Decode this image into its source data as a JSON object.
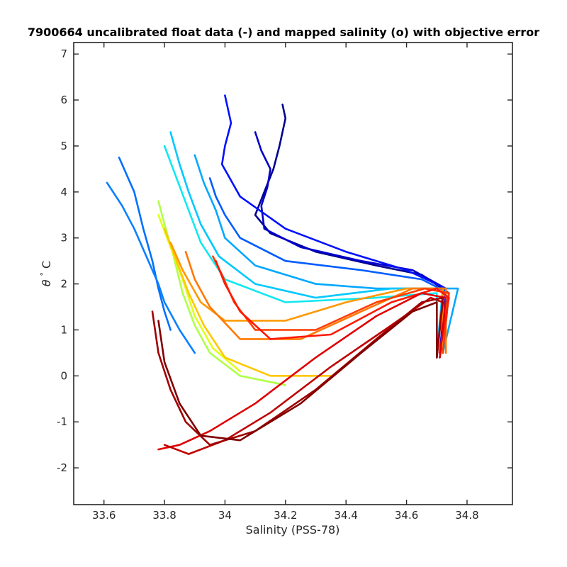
{
  "chart_data": {
    "type": "line",
    "title": "7900664 uncalibrated float data (-) and mapped salinity (o) with objective error",
    "xlabel": "Salinity (PSS-78)",
    "ylabel_symbol": "θ",
    "ylabel_degree": "°",
    "ylabel_unit": "C",
    "xlim": [
      33.5,
      34.95
    ],
    "ylim": [
      -2.8,
      7.25
    ],
    "grid": false,
    "legend": "none",
    "colormap": "jet",
    "x_ticks": [
      33.6,
      33.8,
      34.0,
      34.2,
      34.4,
      34.6,
      34.8
    ],
    "x_tick_labels": [
      "33.6",
      "33.8",
      "34",
      "34.2",
      "34.4",
      "34.6",
      "34.8"
    ],
    "y_ticks": [
      -2,
      -1,
      0,
      1,
      2,
      3,
      4,
      5,
      6,
      7
    ],
    "y_tick_labels": [
      "-2",
      "-1",
      "0",
      "1",
      "2",
      "3",
      "4",
      "5",
      "6",
      "7"
    ],
    "series": [
      {
        "color": "#00008f",
        "x": [
          34.19,
          34.2,
          34.18,
          34.16,
          34.13,
          34.1,
          34.15,
          34.3,
          34.5,
          34.65,
          34.74,
          34.71
        ],
        "y": [
          5.9,
          5.6,
          5.0,
          4.5,
          4.0,
          3.5,
          3.1,
          2.7,
          2.4,
          2.2,
          1.8,
          0.4
        ]
      },
      {
        "color": "#0000cc",
        "x": [
          34.1,
          34.12,
          34.15,
          34.14,
          34.12,
          34.13,
          34.25,
          34.45,
          34.62,
          34.73,
          34.72
        ],
        "y": [
          5.3,
          4.9,
          4.5,
          4.1,
          3.7,
          3.2,
          2.8,
          2.5,
          2.3,
          1.9,
          0.5
        ]
      },
      {
        "color": "#0010ff",
        "x": [
          34.0,
          34.02,
          34.0,
          33.99,
          34.05,
          34.2,
          34.4,
          34.6,
          34.73,
          34.71
        ],
        "y": [
          6.1,
          5.5,
          5.0,
          4.6,
          3.9,
          3.2,
          2.7,
          2.3,
          1.9,
          0.5
        ]
      },
      {
        "color": "#005cff",
        "x": [
          33.95,
          33.97,
          34.0,
          34.05,
          34.2,
          34.45,
          34.65,
          34.74,
          34.72
        ],
        "y": [
          4.3,
          3.9,
          3.5,
          3.0,
          2.5,
          2.3,
          2.1,
          1.8,
          0.5
        ]
      },
      {
        "color": "#0070ff",
        "x": [
          33.65,
          33.7,
          33.73,
          33.76,
          33.78,
          33.8,
          33.82
        ],
        "y": [
          4.75,
          4.0,
          3.2,
          2.5,
          1.9,
          1.4,
          1.0
        ]
      },
      {
        "color": "#0a80ff",
        "x": [
          33.61,
          33.66,
          33.7,
          33.74,
          33.78,
          33.8,
          33.85,
          33.9
        ],
        "y": [
          4.2,
          3.7,
          3.2,
          2.6,
          2.0,
          1.6,
          1.0,
          0.5
        ]
      },
      {
        "color": "#00a8ff",
        "x": [
          33.9,
          33.93,
          33.97,
          34.0,
          34.1,
          34.3,
          34.5,
          34.68,
          34.77,
          34.72
        ],
        "y": [
          4.8,
          4.2,
          3.6,
          3.0,
          2.4,
          2.0,
          1.9,
          1.9,
          1.9,
          0.5
        ]
      },
      {
        "color": "#00c8ff",
        "x": [
          33.82,
          33.85,
          33.88,
          33.92,
          33.98,
          34.1,
          34.3,
          34.55,
          34.72,
          34.7
        ],
        "y": [
          5.3,
          4.6,
          4.0,
          3.3,
          2.6,
          2.0,
          1.7,
          1.9,
          1.9,
          0.5
        ]
      },
      {
        "color": "#10e8f0",
        "x": [
          33.8,
          33.84,
          33.88,
          33.92,
          34.0,
          34.2,
          34.5,
          34.7,
          34.7
        ],
        "y": [
          5.0,
          4.3,
          3.6,
          2.9,
          2.1,
          1.6,
          1.7,
          1.8,
          0.4
        ]
      },
      {
        "color": "#b0ff48",
        "x": [
          33.78,
          33.8,
          33.83,
          33.86,
          33.9,
          33.95,
          34.05,
          34.2
        ],
        "y": [
          3.8,
          3.3,
          2.6,
          1.8,
          1.1,
          0.5,
          0.0,
          -0.2
        ]
      },
      {
        "color": "#e0ff18",
        "x": [
          33.78,
          33.82,
          33.86,
          33.9,
          33.96,
          34.05
        ],
        "y": [
          3.5,
          2.8,
          2.1,
          1.3,
          0.6,
          0.1
        ]
      },
      {
        "color": "#ffc800",
        "x": [
          33.8,
          33.84,
          33.88,
          33.93,
          34.0,
          34.15,
          34.35
        ],
        "y": [
          3.2,
          2.5,
          1.8,
          1.1,
          0.4,
          0.0,
          0.0
        ]
      },
      {
        "color": "#ff9800",
        "x": [
          33.82,
          33.86,
          33.92,
          34.0,
          34.2,
          34.4,
          34.6,
          34.72,
          34.72
        ],
        "y": [
          2.9,
          2.3,
          1.6,
          1.2,
          1.2,
          1.6,
          1.9,
          1.9,
          0.5
        ]
      },
      {
        "color": "#ff7800",
        "x": [
          33.87,
          33.9,
          33.95,
          34.05,
          34.25,
          34.45,
          34.62,
          34.73,
          34.73
        ],
        "y": [
          2.7,
          2.1,
          1.5,
          0.8,
          0.8,
          1.4,
          1.9,
          1.9,
          0.5
        ]
      },
      {
        "color": "#ff3c00",
        "x": [
          33.96,
          33.99,
          34.03,
          34.1,
          34.3,
          34.5,
          34.66,
          34.74,
          34.72
        ],
        "y": [
          2.6,
          2.2,
          1.6,
          1.0,
          1.0,
          1.6,
          1.9,
          1.8,
          0.5
        ]
      },
      {
        "color": "#ff1800",
        "x": [
          33.97,
          34.0,
          34.05,
          34.15,
          34.35,
          34.55,
          34.7,
          34.74,
          34.71
        ],
        "y": [
          2.5,
          2.0,
          1.4,
          0.8,
          0.9,
          1.6,
          1.9,
          1.7,
          0.5
        ]
      },
      {
        "color": "#e00000",
        "x": [
          33.78,
          33.85,
          33.95,
          34.1,
          34.3,
          34.5,
          34.65,
          34.73,
          34.71
        ],
        "y": [
          -1.6,
          -1.5,
          -1.2,
          -0.6,
          0.4,
          1.3,
          1.8,
          1.7,
          0.4
        ]
      },
      {
        "color": "#c00000",
        "x": [
          33.8,
          33.88,
          34.0,
          34.15,
          34.35,
          34.55,
          34.68,
          34.72,
          34.7
        ],
        "y": [
          -1.5,
          -1.7,
          -1.4,
          -0.8,
          0.2,
          1.1,
          1.7,
          1.6,
          0.4
        ]
      },
      {
        "color": "#a00000",
        "x": [
          33.76,
          33.78,
          33.82,
          33.87,
          33.95,
          34.1,
          34.3,
          34.5,
          34.65,
          34.72,
          34.7
        ],
        "y": [
          1.4,
          0.5,
          -0.3,
          -1.0,
          -1.5,
          -1.2,
          -0.3,
          0.8,
          1.6,
          1.7,
          0.4
        ]
      },
      {
        "color": "#800000",
        "x": [
          33.78,
          33.8,
          33.85,
          33.92,
          34.05,
          34.25,
          34.45,
          34.62,
          34.7,
          34.7
        ],
        "y": [
          1.2,
          0.3,
          -0.6,
          -1.3,
          -1.4,
          -0.6,
          0.5,
          1.4,
          1.6,
          0.4
        ]
      }
    ]
  }
}
